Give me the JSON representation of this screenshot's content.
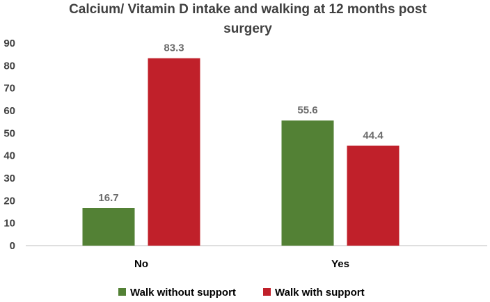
{
  "chart_data": {
    "type": "bar",
    "title_lines": [
      "Calcium/ Vitamin D intake and walking at 12 months post",
      "surgery"
    ],
    "xlabel": "",
    "ylabel": "",
    "categories": [
      "No",
      "Yes"
    ],
    "ylim": [
      0,
      90
    ],
    "yticks": [
      0,
      10,
      20,
      30,
      40,
      50,
      60,
      70,
      80,
      90
    ],
    "grid": false,
    "legend_position": "bottom",
    "series": [
      {
        "name": "Walk without support",
        "values": [
          16.7,
          55.6
        ],
        "labels": [
          "16.7",
          "55.6"
        ],
        "color": "#538135"
      },
      {
        "name": "Walk with support",
        "values": [
          83.3,
          44.4
        ],
        "labels": [
          "83.3",
          "44.4"
        ],
        "color": "#c0202a"
      }
    ]
  }
}
